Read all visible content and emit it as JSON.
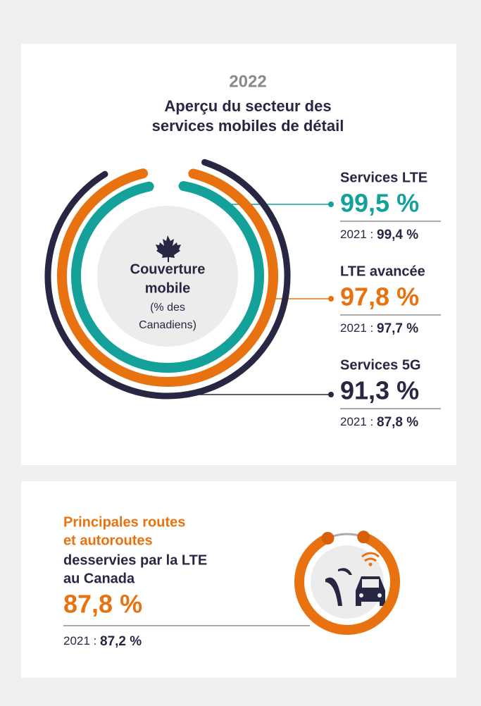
{
  "chart_data": {
    "type": "radial",
    "year": "2022",
    "title_lines": [
      "Aperçu du secteur des",
      "services mobiles de détail"
    ],
    "center_lines": [
      "Couverture",
      "mobile"
    ],
    "center_note_lines": [
      "(% des",
      "Canadiens)"
    ],
    "previous_prefix": "2021 :",
    "series": [
      {
        "name": "Services LTE",
        "color": "#14a19a",
        "value": 99.5,
        "value_label": "99,5 %",
        "previous": 99.4,
        "previous_label": "99,4 %"
      },
      {
        "name": "LTE avancée",
        "color": "#e8720f",
        "value": 97.8,
        "value_label": "97,8 %",
        "previous": 97.7,
        "previous_label": "97,7 %"
      },
      {
        "name": "Services 5G",
        "color": "#272744",
        "value": 91.3,
        "value_label": "91,3 %",
        "previous": 87.8,
        "previous_label": "87,8 %"
      }
    ]
  },
  "highway": {
    "highlight_lines": [
      "Principales routes",
      "et autoroutes"
    ],
    "lines": [
      "desservies par la LTE",
      "au Canada"
    ],
    "color": "#e8720f",
    "value": 87.8,
    "value_label": "87,8 %",
    "previous_prefix": "2021 :",
    "previous": 87.2,
    "previous_label": "87,2 %"
  }
}
